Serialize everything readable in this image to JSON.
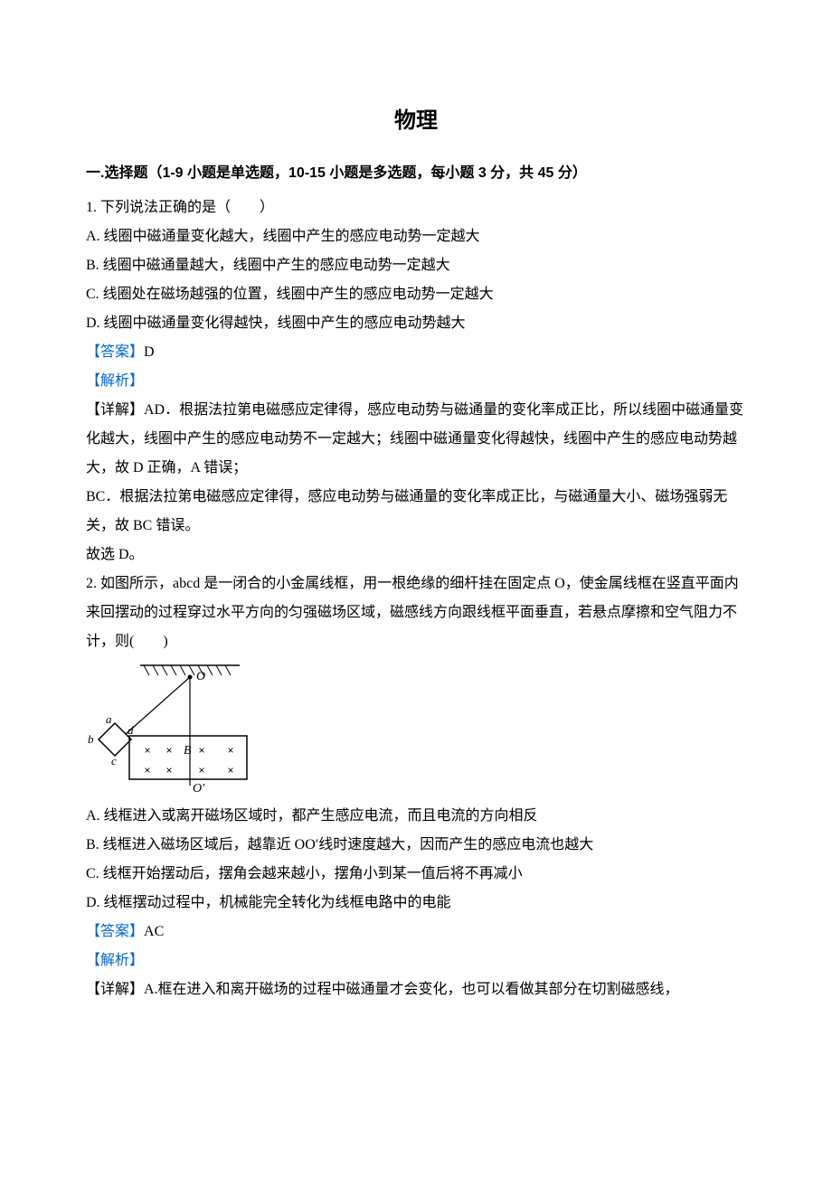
{
  "title": "物理",
  "section": {
    "heading": "一.选择题（1-9 小题是单选题，10-15 小题是多选题，每小题 3 分，共 45 分）"
  },
  "q1": {
    "stem": "1. 下列说法正确的是（　　）",
    "optA": "A. 线圈中磁通量变化越大，线圈中产生的感应电动势一定越大",
    "optB": "B. 线圈中磁通量越大，线圈中产生的感应电动势一定越大",
    "optC": "C. 线圈处在磁场越强的位置，线圈中产生的感应电动势一定越大",
    "optD": "D. 线圈中磁通量变化得越快，线圈中产生的感应电动势越大",
    "answerLabel": "【答案】",
    "answerVal": "D",
    "analysisLabel": "【解析】",
    "detail1": "【详解】AD．根据法拉第电磁感应定律得，感应电动势与磁通量的变化率成正比，所以线圈中磁通量变化越大，线圈中产生的感应电动势不一定越大；线圈中磁通量变化得越快，线圈中产生的感应电动势越大，故 D 正确，A 错误；",
    "detail2": "BC．根据法拉第电磁感应定律得，感应电动势与磁通量的变化率成正比，与磁通量大小、磁场强弱无关，故 BC 错误。",
    "detail3": "故选 D。"
  },
  "q2": {
    "stem": "2. 如图所示，abcd 是一闭合的小金属线框，用一根绝缘的细杆挂在固定点 O，使金属线框在竖直平面内来回摆动的过程穿过水平方向的匀强磁场区域，磁感线方向跟线框平面垂直，若悬点摩擦和空气阻力不计，则(　　)",
    "optA": "A. 线框进入或离开磁场区域时，都产生感应电流，而且电流的方向相反",
    "optB": "B. 线框进入磁场区域后，越靠近 OO′线时速度越大，因而产生的感应电流也越大",
    "optC": "C. 线框开始摆动后，摆角会越来越小，摆角小到某一值后将不再减小",
    "optD": "D. 线框摆动过程中，机械能完全转化为线框电路中的电能",
    "answerLabel": "【答案】",
    "answerVal": "AC",
    "analysisLabel": "【解析】",
    "detail1": "【详解】A.框在进入和离开磁场的过程中磁通量才会变化，也可以看做其部分在切割磁感线，"
  },
  "figure": {
    "labelO": "O",
    "labelOprime": "O′",
    "labelA": "a",
    "labelB": "b",
    "labelC": "c",
    "labelD": "d",
    "labelBfield": "B",
    "colors": {
      "stroke": "#000000",
      "hatch": "#000000",
      "bg": "#ffffff"
    },
    "width": 185,
    "height": 145
  }
}
